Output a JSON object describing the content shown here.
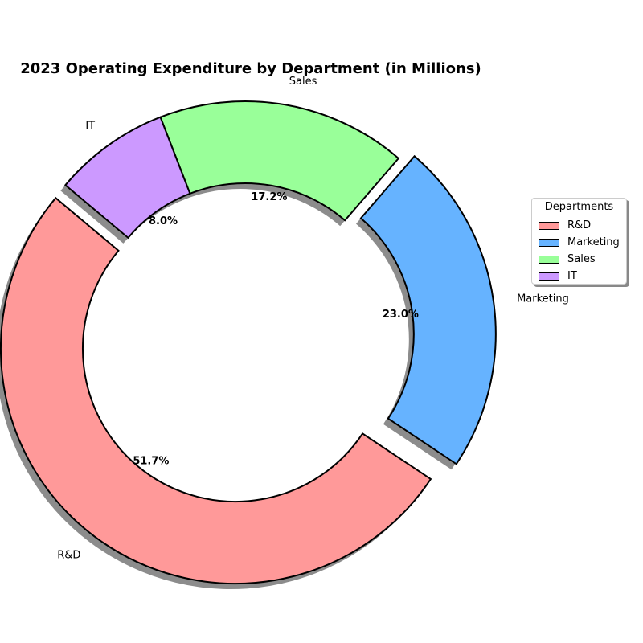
{
  "chart_data": {
    "type": "pie",
    "subtype": "donut",
    "title": "2023 Operating Expenditure by Department (in Millions)",
    "categories": [
      "R&D",
      "Marketing",
      "Sales",
      "IT"
    ],
    "values": [
      51.7,
      23.0,
      17.2,
      8.0
    ],
    "percent_labels": [
      "51.7%",
      "23.0%",
      "17.2%",
      "8.0%"
    ],
    "colors": [
      "#ff9999",
      "#66b3ff",
      "#99ff99",
      "#cc99ff"
    ],
    "exploded": [
      true,
      true,
      false,
      false
    ],
    "shadow": true,
    "legend": {
      "title": "Departments",
      "placement": "right",
      "entries": [
        "R&D",
        "Marketing",
        "Sales",
        "IT"
      ]
    }
  }
}
